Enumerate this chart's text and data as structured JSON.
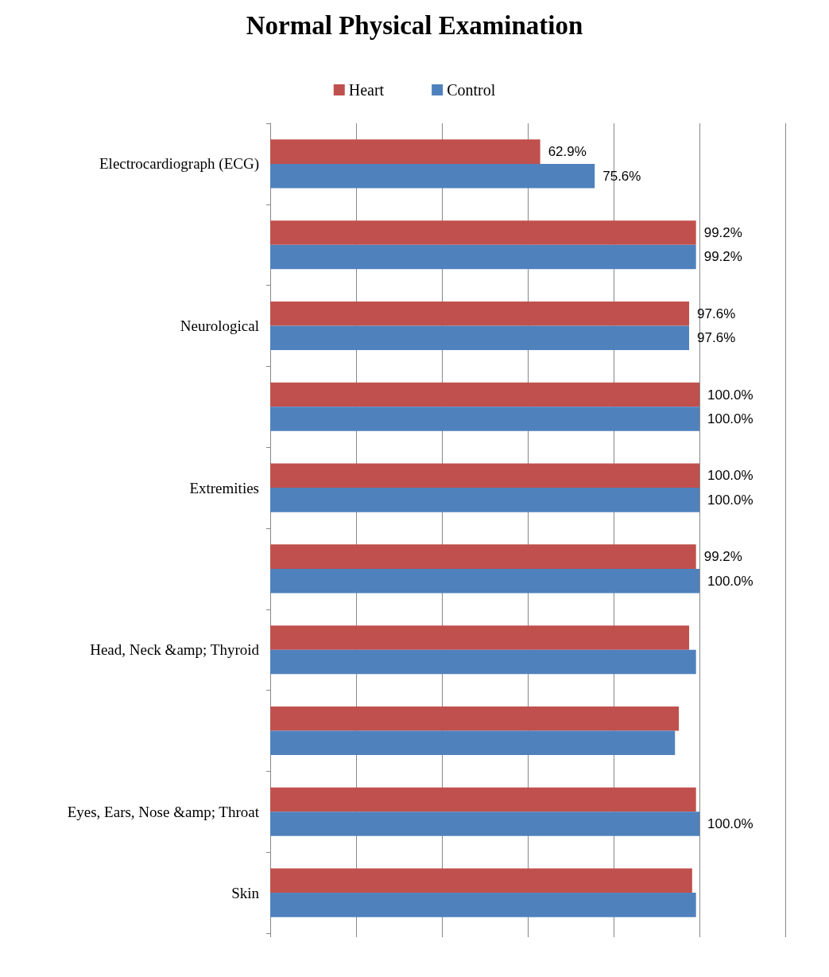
{
  "chart_data": {
    "type": "bar",
    "title": "Normal Physical Examination",
    "orientation": "horizontal",
    "grid": "x",
    "legend": "top",
    "tick_labels": "y",
    "xlim": [
      0,
      120
    ],
    "xticks": [
      0,
      20,
      40,
      60,
      80,
      100,
      120
    ],
    "categories": [
      "Electrocardiograph (ECG)",
      null,
      "Neurological",
      null,
      "Extremities",
      null,
      "Head, Neck &amp; Thyroid",
      null,
      "Eyes, Ears, Nose &amp; Throat",
      "Skin"
    ],
    "series": [
      {
        "name": "Heart",
        "color": "#c0504d",
        "values": [
          62.9,
          99.2,
          97.6,
          100,
          100,
          99.2,
          97.6,
          95.2,
          99.2,
          98.3
        ],
        "value_labels": [
          "62.9%",
          "99.2%",
          "97.6%",
          "100.0%",
          "100.0%",
          "99.2%",
          null,
          null,
          null,
          null
        ]
      },
      {
        "name": "Control",
        "color": "#4f81bd",
        "values": [
          75.6,
          99.2,
          97.6,
          100,
          100,
          100,
          99.2,
          94.3,
          100,
          99.2
        ],
        "value_labels": [
          "75.6%",
          "99.2%",
          "97.6%",
          "100.0%",
          "100.0%",
          "100.0%",
          null,
          null,
          "100.0%",
          null
        ]
      }
    ]
  }
}
